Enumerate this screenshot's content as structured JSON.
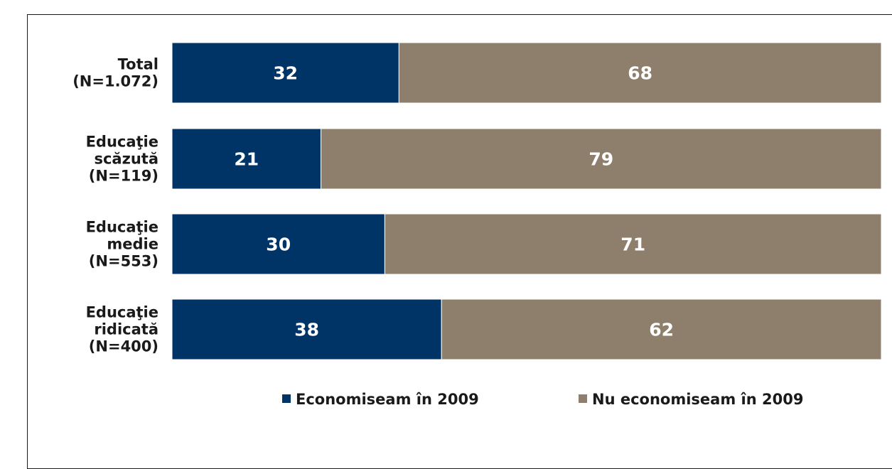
{
  "chart_data": {
    "type": "bar",
    "orientation": "horizontal",
    "stacked": true,
    "categories": [
      [
        "Total",
        "(N=1.072)"
      ],
      [
        "Educaţie",
        "scăzută",
        "(N=119)"
      ],
      [
        "Educaţie",
        "medie",
        "(N=553)"
      ],
      [
        "Educaţie",
        "ridicată",
        "(N=400)"
      ]
    ],
    "series": [
      {
        "name": "Economiseam în 2009",
        "color": "#003366",
        "values": [
          32,
          21,
          30,
          38
        ]
      },
      {
        "name": "Nu economiseam în 2009",
        "color": "#8e7f6d",
        "values": [
          68,
          79,
          71,
          62
        ]
      }
    ],
    "xlim": [
      0,
      100
    ],
    "grid": false,
    "legend_position": "bottom"
  }
}
